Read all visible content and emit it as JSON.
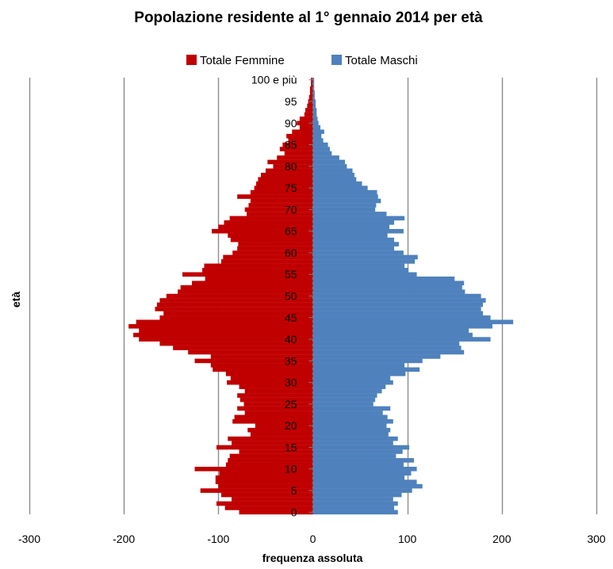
{
  "chart_data": {
    "type": "bar",
    "orientation": "horizontal",
    "layout": "population-pyramid",
    "title": "Popolazione residente al 1° gennaio 2014 per età",
    "xlabel": "frequenza assoluta",
    "ylabel": "età",
    "xlim": [
      -300,
      300
    ],
    "xticks": [
      "-300",
      "-200",
      "-100",
      "0",
      "100",
      "200",
      "300"
    ],
    "yticks": [
      "0",
      "5",
      "10",
      "15",
      "20",
      "25",
      "30",
      "35",
      "40",
      "45",
      "50",
      "55",
      "60",
      "65",
      "70",
      "75",
      "80",
      "85",
      "90",
      "95",
      "100 e più"
    ],
    "grid": "vertical",
    "legend_position": "top",
    "categories_count": 101,
    "series": [
      {
        "name": "Totale Femmine",
        "color": "#C00000",
        "side": "negative",
        "values": [
          -78,
          -93,
          -102,
          -86,
          -97,
          -119,
          -100,
          -103,
          -103,
          -99,
          -125,
          -92,
          -90,
          -88,
          -78,
          -102,
          -86,
          -90,
          -66,
          -69,
          -61,
          -85,
          -83,
          -72,
          -80,
          -73,
          -77,
          -80,
          -72,
          -78,
          -91,
          -87,
          -92,
          -106,
          -108,
          -125,
          -108,
          -132,
          -148,
          -162,
          -184,
          -190,
          -184,
          -195,
          -187,
          -162,
          -158,
          -167,
          -165,
          -162,
          -155,
          -143,
          -140,
          -128,
          -114,
          -138,
          -117,
          -115,
          -97,
          -95,
          -85,
          -80,
          -79,
          -87,
          -90,
          -107,
          -100,
          -94,
          -88,
          -70,
          -72,
          -68,
          -66,
          -80,
          -66,
          -62,
          -60,
          -58,
          -55,
          -50,
          -42,
          -48,
          -38,
          -30,
          -35,
          -32,
          -26,
          -28,
          -22,
          -14,
          -17,
          -14,
          -9,
          -8,
          -6,
          -5,
          -4,
          -3,
          -3,
          -2,
          -2
        ]
      },
      {
        "name": "Totale Maschi",
        "color": "#4F81BD",
        "side": "positive",
        "values": [
          90,
          86,
          90,
          85,
          94,
          105,
          116,
          110,
          97,
          104,
          110,
          96,
          107,
          88,
          95,
          102,
          85,
          90,
          80,
          82,
          78,
          85,
          79,
          74,
          82,
          64,
          66,
          68,
          73,
          77,
          85,
          82,
          98,
          113,
          97,
          116,
          135,
          160,
          157,
          155,
          188,
          169,
          165,
          190,
          212,
          188,
          180,
          178,
          180,
          183,
          178,
          161,
          158,
          160,
          150,
          110,
          101,
          97,
          108,
          111,
          96,
          86,
          91,
          86,
          79,
          96,
          81,
          86,
          97,
          78,
          66,
          67,
          72,
          69,
          68,
          58,
          52,
          46,
          44,
          42,
          36,
          34,
          28,
          20,
          18,
          16,
          11,
          9,
          12,
          8,
          6,
          5,
          4,
          4,
          3,
          3,
          2,
          2,
          1,
          1,
          1
        ]
      }
    ]
  }
}
